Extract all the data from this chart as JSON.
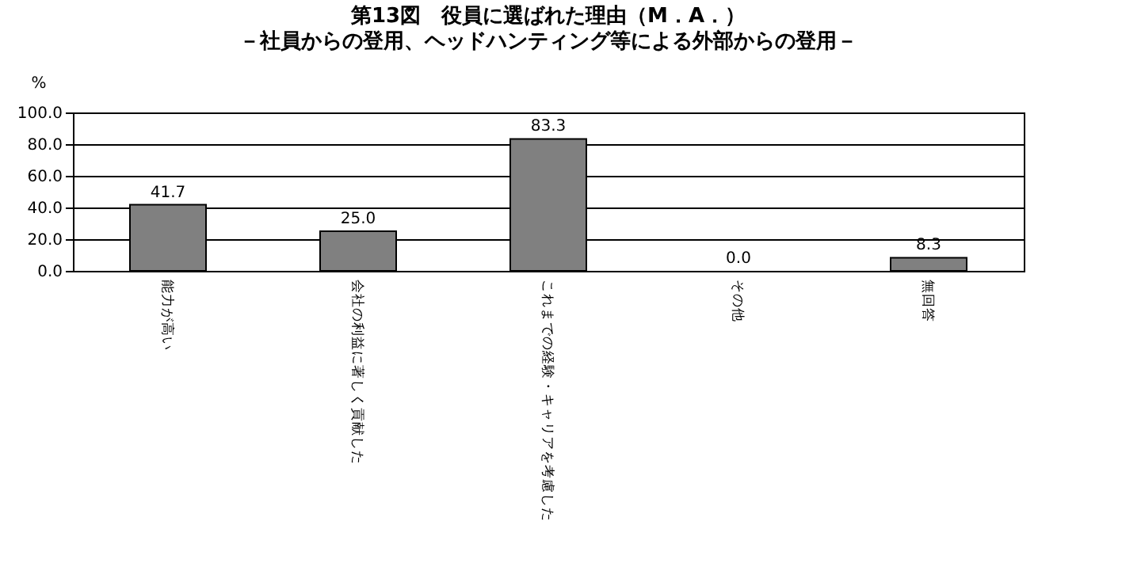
{
  "chart_data": {
    "type": "bar",
    "title": "第13図　役員に選ばれた理由（M．A．）",
    "subtitle": "－社員からの登用、ヘッドハンティング等による外部からの登用－",
    "ylabel": "%",
    "categories": [
      "能力が高い",
      "会社の利益に著しく貢献した",
      "これまでの経験・キャリアを考慮した",
      "その他",
      "無回答"
    ],
    "values": [
      41.7,
      25.0,
      83.3,
      0.0,
      8.3
    ],
    "value_labels": [
      "41.7",
      "25.0",
      "83.3",
      "0.0",
      "8.3"
    ],
    "color": "#808080",
    "ylim": [
      0,
      100
    ],
    "yticks": [
      {
        "value": 0,
        "label": "0.0"
      },
      {
        "value": 20,
        "label": "20.0"
      },
      {
        "value": 40,
        "label": "40.0"
      },
      {
        "value": 60,
        "label": "60.0"
      },
      {
        "value": 80,
        "label": "80.0"
      },
      {
        "value": 100,
        "label": "100.0"
      }
    ],
    "grid": "y"
  }
}
